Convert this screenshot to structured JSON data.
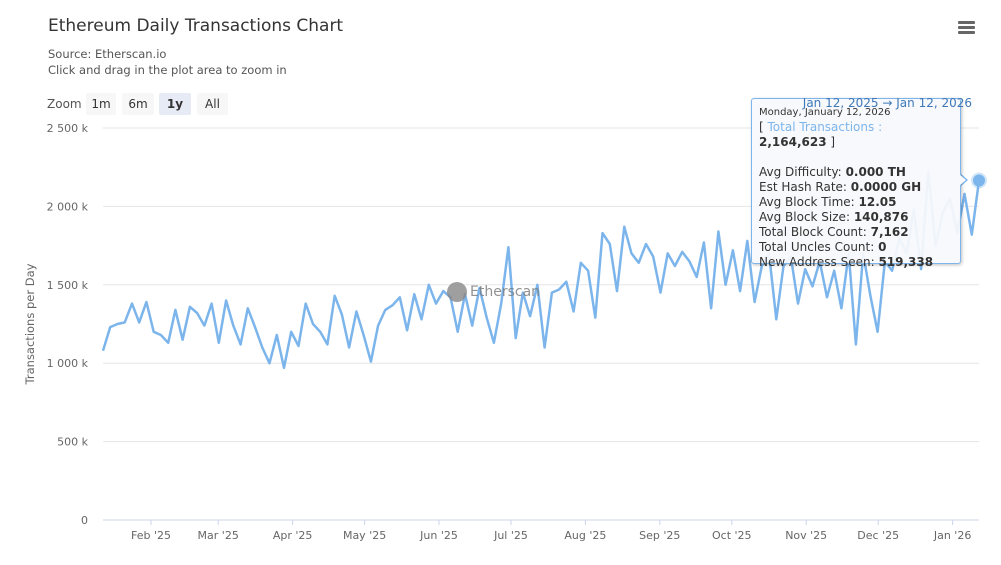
{
  "header": {
    "title": "Ethereum Daily Transactions Chart",
    "source": "Source: Etherscan.io",
    "hint": "Click and drag in the plot area to zoom in",
    "menu_icon": "hamburger-menu-icon"
  },
  "zoom": {
    "label": "Zoom",
    "buttons": [
      "1m",
      "6m",
      "1y",
      "All"
    ],
    "selected": "1y"
  },
  "range_display": {
    "from": "Jan 12, 2025",
    "arrow": "→",
    "to": "Jan 12, 2026"
  },
  "watermark": "Etherscan",
  "tooltip": {
    "date": "Monday, January 12, 2026",
    "series_name": "Total Transactions",
    "series_value": "2,164,623",
    "rows": [
      {
        "label": "Avg Difficulty:",
        "value": "0.000 TH"
      },
      {
        "label": "Est Hash Rate:",
        "value": "0.0000 GH"
      },
      {
        "label": "Avg Block Time:",
        "value": "12.05"
      },
      {
        "label": "Avg Block Size:",
        "value": "140,876"
      },
      {
        "label": "Total Block Count:",
        "value": "7,162"
      },
      {
        "label": "Total Uncles Count:",
        "value": "0"
      },
      {
        "label": "New Address Seen:",
        "value": "519,338"
      }
    ]
  },
  "chart_data": {
    "type": "line",
    "title": "Ethereum Daily Transactions Chart",
    "ylabel": "Transactions per Day",
    "ylim": [
      0,
      2500000
    ],
    "yticks": [
      0,
      500000,
      1000000,
      1500000,
      2000000,
      2500000
    ],
    "ytick_labels": [
      "0",
      "500 k",
      "1 000 k",
      "1 500 k",
      "2 000 k",
      "2 500 k"
    ],
    "xlim": [
      "2025-01-12",
      "2026-01-12"
    ],
    "xticks": [
      "2025-02-01",
      "2025-03-01",
      "2025-04-01",
      "2025-05-01",
      "2025-06-01",
      "2025-07-01",
      "2025-08-01",
      "2025-09-01",
      "2025-10-01",
      "2025-11-01",
      "2025-12-01",
      "2026-01-01"
    ],
    "xtick_labels": [
      "Feb '25",
      "Mar '25",
      "Apr '25",
      "May '25",
      "Jun '25",
      "Jul '25",
      "Aug '25",
      "Sep '25",
      "Oct '25",
      "Nov '25",
      "Dec '25",
      "Jan '26"
    ],
    "grid": true,
    "color": "#7cb5ec",
    "x_start": "2025-01-12",
    "x_end": "2026-01-12",
    "values_k": [
      1080,
      1230,
      1250,
      1260,
      1380,
      1260,
      1390,
      1200,
      1180,
      1130,
      1340,
      1150,
      1360,
      1320,
      1240,
      1380,
      1130,
      1400,
      1240,
      1120,
      1350,
      1230,
      1100,
      1000,
      1180,
      970,
      1200,
      1110,
      1380,
      1250,
      1200,
      1120,
      1430,
      1310,
      1100,
      1330,
      1180,
      1010,
      1240,
      1340,
      1370,
      1420,
      1210,
      1440,
      1280,
      1500,
      1380,
      1460,
      1420,
      1200,
      1440,
      1240,
      1480,
      1290,
      1130,
      1380,
      1740,
      1160,
      1450,
      1300,
      1500,
      1100,
      1450,
      1470,
      1520,
      1330,
      1640,
      1590,
      1290,
      1830,
      1760,
      1460,
      1870,
      1700,
      1640,
      1760,
      1680,
      1450,
      1700,
      1620,
      1710,
      1650,
      1550,
      1770,
      1350,
      1840,
      1500,
      1720,
      1460,
      1780,
      1390,
      1620,
      1700,
      1280,
      1620,
      1680,
      1380,
      1600,
      1490,
      1650,
      1420,
      1590,
      1350,
      1700,
      1120,
      1700,
      1430,
      1200,
      1650,
      1590,
      1800,
      1700,
      1980,
      1600,
      2220,
      1750,
      1960,
      2050,
      1830,
      2080,
      1820,
      2165
    ]
  }
}
